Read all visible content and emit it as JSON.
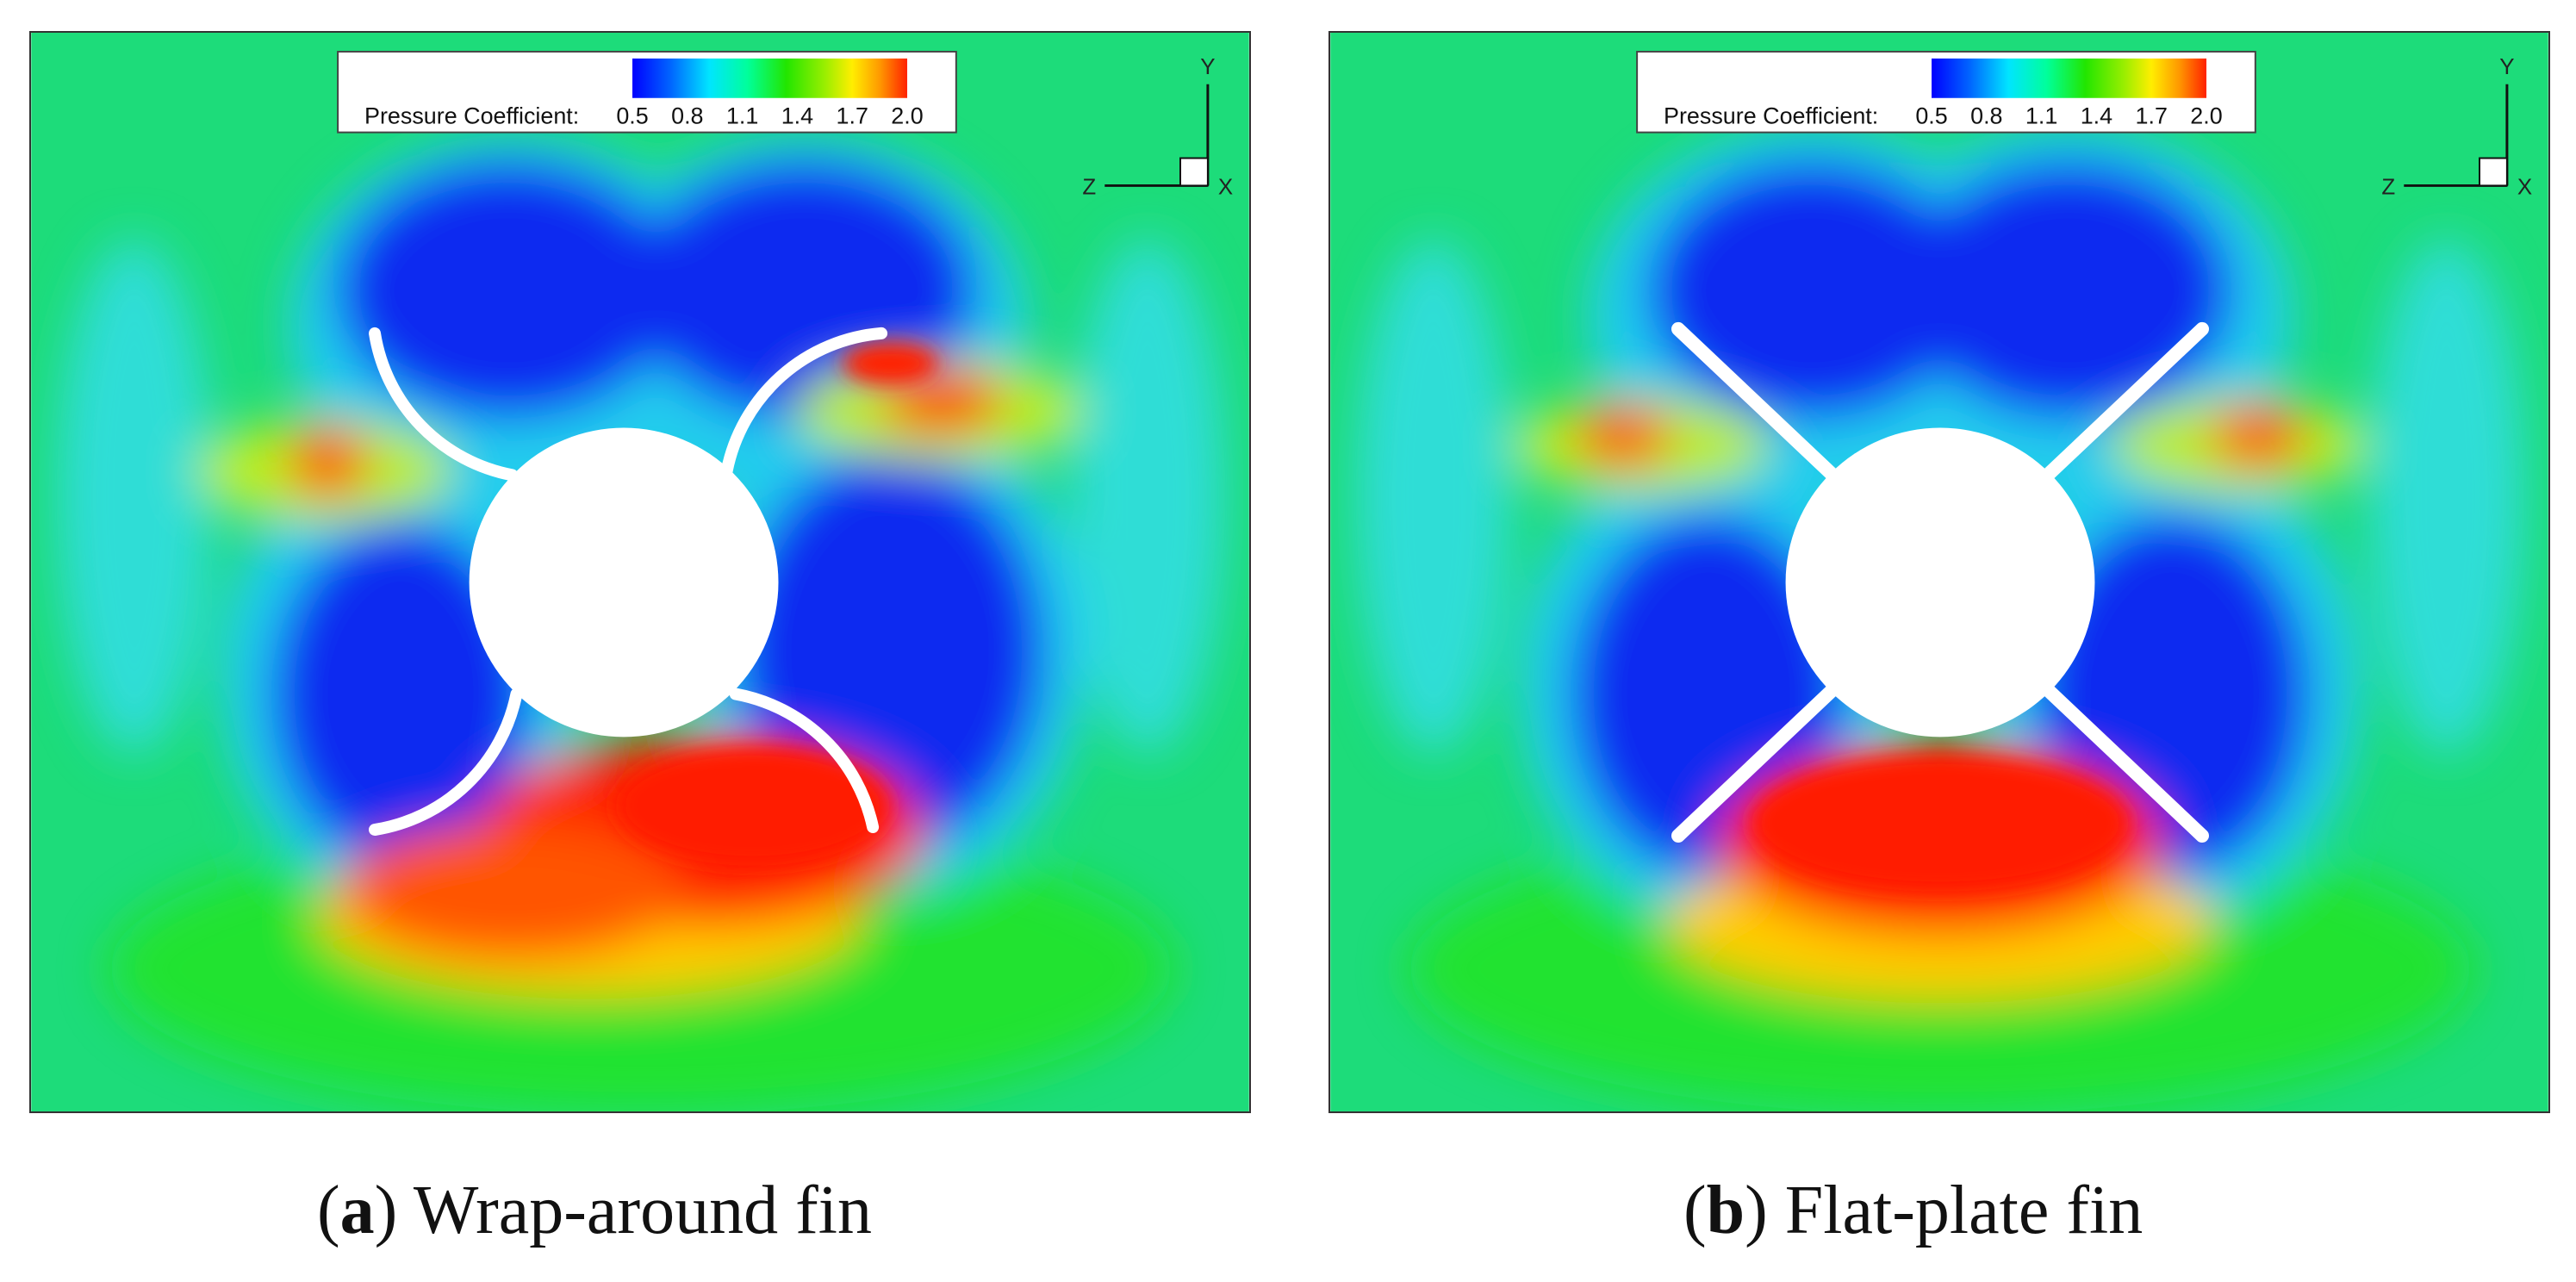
{
  "legend": {
    "label": "Pressure Coefficient:",
    "ticks": [
      "0.5",
      "0.8",
      "1.1",
      "1.4",
      "1.7",
      "2.0"
    ]
  },
  "axes": {
    "y": "Y",
    "z": "Z",
    "x": "X"
  },
  "panels": [
    {
      "letter": "a",
      "open": "(",
      "close": ")",
      "title": " Wrap-around fin"
    },
    {
      "letter": "b",
      "open": "(",
      "close": ")",
      "title": " Flat-plate fin"
    }
  ],
  "colors": {
    "background_field": "#1ddc7a",
    "low_pressure": "#0a2cf0",
    "high_pressure": "#ff2200",
    "colormap": [
      "#0000ff",
      "#0066ff",
      "#00e5ff",
      "#00ff9a",
      "#22e600",
      "#99ee00",
      "#ffee00",
      "#ff9900",
      "#ff2200"
    ]
  }
}
